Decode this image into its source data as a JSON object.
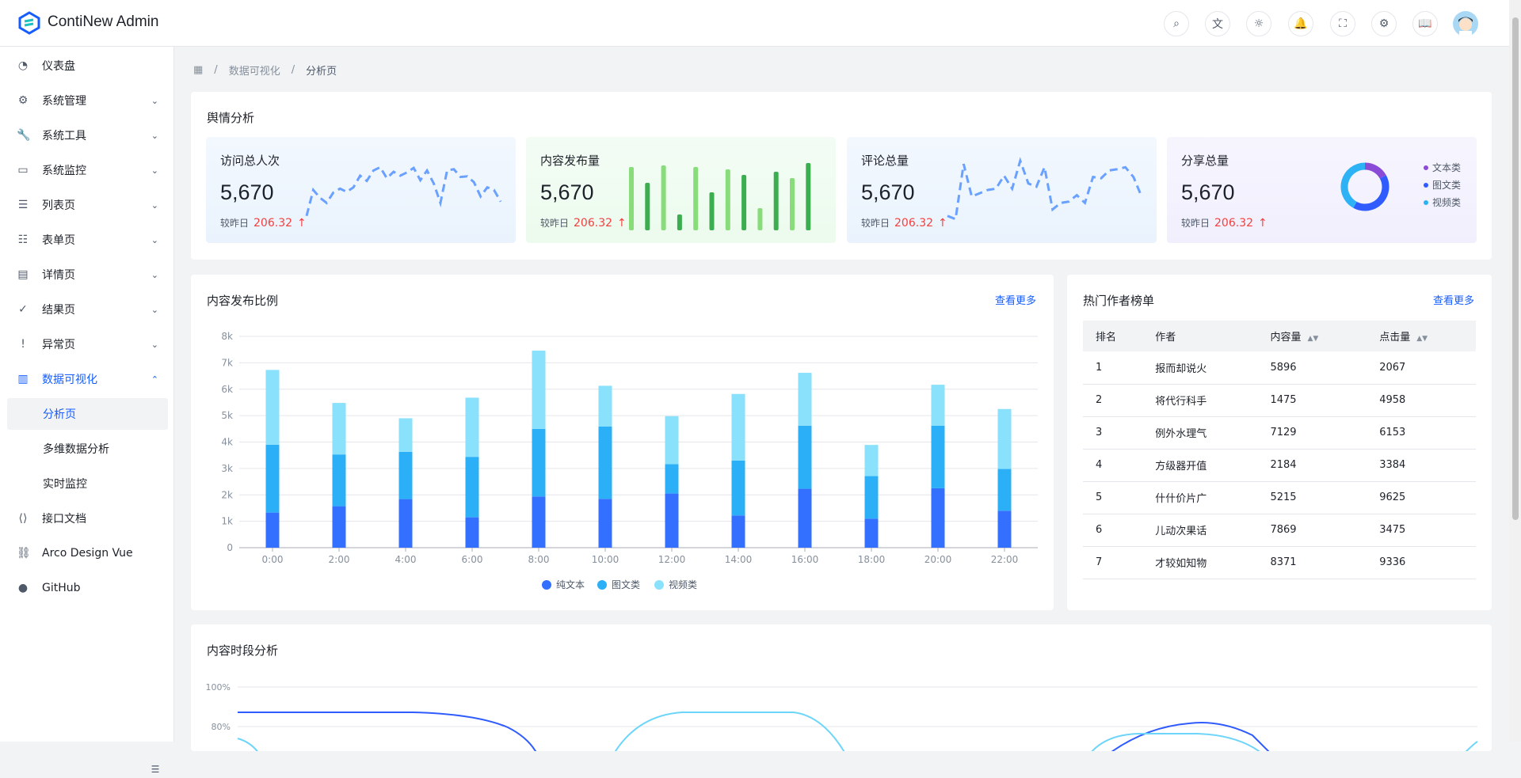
{
  "header": {
    "app_title": "ContiNew Admin",
    "icons": [
      "search-icon",
      "translate-icon",
      "theme-icon",
      "bell-icon",
      "fullscreen-icon",
      "gear-icon",
      "book-icon"
    ]
  },
  "sidebar": {
    "items": [
      {
        "label": "仪表盘",
        "icon": "dashboard-icon",
        "glyph": "◔"
      },
      {
        "label": "系统管理",
        "icon": "gear-icon",
        "glyph": "⚙",
        "chevron": "down"
      },
      {
        "label": "系统工具",
        "icon": "wrench-icon",
        "glyph": "🔧",
        "chevron": "down"
      },
      {
        "label": "系统监控",
        "icon": "monitor-icon",
        "glyph": "▭",
        "chevron": "down"
      },
      {
        "label": "列表页",
        "icon": "list-icon",
        "glyph": "☰",
        "chevron": "down"
      },
      {
        "label": "表单页",
        "icon": "form-icon",
        "glyph": "☷",
        "chevron": "down"
      },
      {
        "label": "详情页",
        "icon": "file-icon",
        "glyph": "▤",
        "chevron": "down"
      },
      {
        "label": "结果页",
        "icon": "check-circle-icon",
        "glyph": "✓",
        "chevron": "down"
      },
      {
        "label": "异常页",
        "icon": "exclamation-circle-icon",
        "glyph": "!",
        "chevron": "down"
      },
      {
        "label": "数据可视化",
        "icon": "bar-chart-icon",
        "glyph": "▥",
        "chevron": "up",
        "active": true
      },
      {
        "label": "分析页",
        "child": true,
        "selected": true
      },
      {
        "label": "多维数据分析",
        "child": true
      },
      {
        "label": "实时监控",
        "child": true
      },
      {
        "label": "接口文档",
        "icon": "code-file-icon",
        "glyph": "⟨⟩"
      },
      {
        "label": "Arco Design Vue",
        "icon": "link-icon",
        "glyph": "⛓"
      },
      {
        "label": "GitHub",
        "icon": "github-icon",
        "glyph": "●"
      }
    ]
  },
  "breadcrumb": [
    "数据可视化",
    "分析页"
  ],
  "opinion": {
    "title": "舆情分析",
    "cards": [
      {
        "title": "访问总人次",
        "value": "5,670",
        "cmp_label": "较昨日",
        "cmp_value": "206.32",
        "bg": "#eaf3fd",
        "chart": "line",
        "color": "#6aa1ff",
        "values": [
          10,
          50,
          38,
          30,
          46,
          52,
          47,
          54,
          72,
          64,
          80,
          85,
          68,
          78,
          72,
          77,
          84,
          65,
          80,
          60,
          30,
          80,
          82,
          70,
          71,
          62,
          40,
          54,
          50,
          32
        ]
      },
      {
        "title": "内容发布量",
        "value": "5,670",
        "cmp_label": "较昨日",
        "cmp_value": "206.32",
        "bg": "#ecfbee",
        "chart": "bar",
        "colors": [
          "#88dc7a",
          "#3cae50"
        ],
        "values": [
          80,
          60,
          82,
          20,
          80,
          48,
          77,
          70,
          28,
          74,
          66,
          85
        ]
      },
      {
        "title": "评论总量",
        "value": "5,670",
        "cmp_label": "较昨日",
        "cmp_value": "206.32",
        "bg": "#eaf3fd",
        "chart": "line",
        "color": "#6aa1ff",
        "values": [
          10,
          5,
          90,
          40,
          45,
          50,
          52,
          72,
          52,
          95,
          60,
          55,
          85,
          20,
          30,
          32,
          42,
          30,
          70,
          68,
          80,
          82,
          85,
          70,
          40
        ]
      },
      {
        "title": "分享总量",
        "value": "5,670",
        "cmp_label": "较昨日",
        "cmp_value": "206.32",
        "bg": "#f1effd",
        "chart": "donut",
        "slices": [
          {
            "name": "文本类",
            "value": 17,
            "color": "#8a4bd6"
          },
          {
            "name": "图文类",
            "value": 41,
            "color": "#2f5bff"
          },
          {
            "name": "视频类",
            "value": 42,
            "color": "#2cb2f5"
          }
        ]
      }
    ]
  },
  "distribution": {
    "title": "内容发布比例",
    "more": "查看更多"
  },
  "chart_data": {
    "type": "bar",
    "stacked": true,
    "categories": [
      "0:00",
      "2:00",
      "4:00",
      "6:00",
      "8:00",
      "10:00",
      "12:00",
      "14:00",
      "16:00",
      "18:00",
      "20:00",
      "22:00"
    ],
    "yticks": [
      "0",
      "1k",
      "2k",
      "3k",
      "4k",
      "5k",
      "6k",
      "7k",
      "8k"
    ],
    "ylim": [
      0,
      8000
    ],
    "grid": true,
    "legend": "bottom",
    "series": [
      {
        "name": "纯文本",
        "color": "#3370ff",
        "values": [
          1330,
          1570,
          1840,
          1150,
          1940,
          1850,
          2050,
          1220,
          2230,
          1100,
          2250,
          1400
        ]
      },
      {
        "name": "图文类",
        "color": "#2bb0f7",
        "values": [
          2570,
          1960,
          1790,
          2290,
          2560,
          2740,
          1110,
          2080,
          2390,
          1610,
          2370,
          1580
        ]
      },
      {
        "name": "视频类",
        "color": "#8ae1fb",
        "values": [
          2830,
          1950,
          1270,
          2240,
          2960,
          1540,
          1820,
          2520,
          2000,
          1180,
          1550,
          2270
        ]
      }
    ]
  },
  "authors": {
    "title": "热门作者榜单",
    "more": "查看更多",
    "columns": [
      "排名",
      "作者",
      "内容量",
      "点击量"
    ],
    "rows": [
      [
        "1",
        "报而却说火",
        "5896",
        "2067"
      ],
      [
        "2",
        "将代行科手",
        "1475",
        "4958"
      ],
      [
        "3",
        "例外水理气",
        "7129",
        "6153"
      ],
      [
        "4",
        "方级器开值",
        "2184",
        "3384"
      ],
      [
        "5",
        "什什价片广",
        "5215",
        "9625"
      ],
      [
        "6",
        "儿动次果话",
        "7869",
        "3475"
      ],
      [
        "7",
        "才较如知物",
        "8371",
        "9336"
      ]
    ]
  },
  "period": {
    "title": "内容时段分析",
    "yticks": [
      "100%",
      "80%"
    ]
  }
}
